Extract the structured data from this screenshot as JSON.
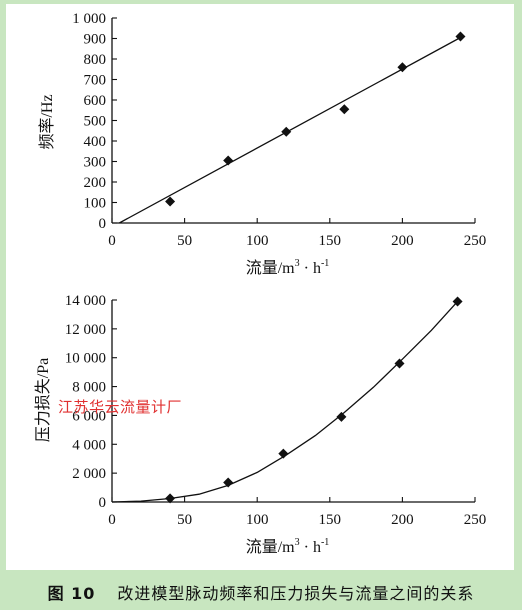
{
  "chart_data": [
    {
      "type": "scatter",
      "title": "",
      "xlabel": "流量/m³・h⁻¹",
      "xlabel_main": "流量/m",
      "xlabel_sup1": "3",
      "xlabel_mid": " · h",
      "xlabel_sup2": "-1",
      "ylabel": "频率/Hz",
      "xlim": [
        0,
        250
      ],
      "ylim": [
        0,
        1000
      ],
      "xticks": [
        0,
        50,
        100,
        150,
        200,
        250
      ],
      "yticks": [
        0,
        100,
        200,
        300,
        400,
        500,
        600,
        700,
        800,
        900,
        1000
      ],
      "ytick_labels": [
        "0",
        "100",
        "200",
        "300",
        "400",
        "500",
        "600",
        "700",
        "800",
        "900",
        "1 000"
      ],
      "grid": false,
      "series": [
        {
          "kind": "points",
          "marker": "diamond",
          "x": [
            40,
            80,
            120,
            160,
            200,
            240
          ],
          "y": [
            105,
            305,
            445,
            555,
            760,
            910
          ]
        },
        {
          "kind": "fit-line",
          "x": [
            5,
            240
          ],
          "y": [
            0,
            905
          ]
        }
      ]
    },
    {
      "type": "scatter",
      "title": "",
      "xlabel": "流量/m³・h⁻¹",
      "xlabel_main": "流量/m",
      "xlabel_sup1": "3",
      "xlabel_mid": " · h",
      "xlabel_sup2": "-1",
      "ylabel": "压力损失/Pa",
      "xlim": [
        0,
        250
      ],
      "ylim": [
        0,
        14000
      ],
      "xticks": [
        0,
        50,
        100,
        150,
        200,
        250
      ],
      "yticks": [
        0,
        2000,
        4000,
        6000,
        8000,
        10000,
        12000,
        14000
      ],
      "ytick_labels": [
        "0",
        "2 000",
        "4 000",
        "6 000",
        "8 000",
        "10 000",
        "12 000",
        "14 000"
      ],
      "grid": false,
      "series": [
        {
          "kind": "points",
          "marker": "diamond",
          "x": [
            40,
            80,
            118,
            158,
            198,
            238
          ],
          "y": [
            250,
            1350,
            3350,
            5900,
            9600,
            13900
          ]
        },
        {
          "kind": "fit-curve",
          "x": [
            0,
            20,
            40,
            60,
            80,
            100,
            120,
            140,
            160,
            180,
            200,
            220,
            238
          ],
          "y": [
            0,
            60,
            240,
            540,
            1150,
            2050,
            3250,
            4600,
            6200,
            7950,
            9900,
            11900,
            13900
          ]
        }
      ]
    }
  ],
  "caption": {
    "figure": "图 10",
    "title": "改进模型脉动频率和压力损失与流量之间的关系"
  },
  "watermark": "江苏华云流量计厂"
}
